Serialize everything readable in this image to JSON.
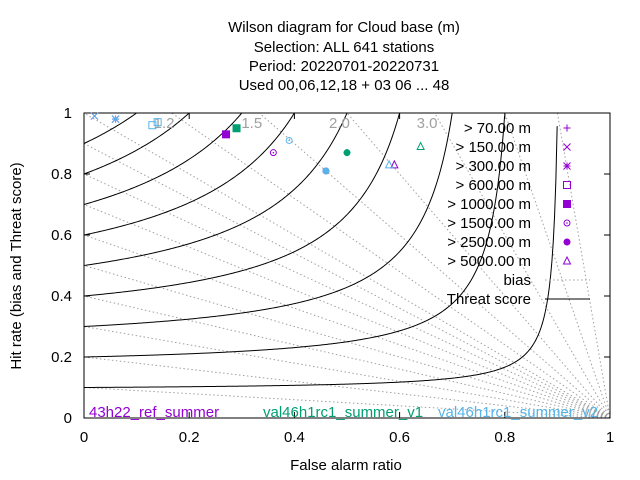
{
  "chart_data": {
    "type": "scatter",
    "title": [
      "Wilson diagram  for Cloud base (m)",
      "Selection: ALL    641 stations",
      "Period: 20220701-20220731",
      "Used  00,06,12,18  + 03 06 ... 48"
    ],
    "xlabel": "False alarm ratio",
    "ylabel": "Hit rate (bias and Threat score)",
    "xlim": [
      0,
      1
    ],
    "ylim": [
      0,
      1
    ],
    "xticks": [
      "0",
      "0.2",
      "0.4",
      "0.6",
      "0.8",
      "1"
    ],
    "yticks": [
      "0",
      "0.2",
      "0.4",
      "0.6",
      "0.8",
      "1"
    ],
    "bias_lines": {
      "values": [
        0.1,
        0.2,
        0.3,
        0.4,
        0.5,
        0.6,
        0.7,
        0.8,
        0.9,
        1.0,
        1.2,
        1.5,
        2.0,
        3.0,
        5.0,
        10.0
      ],
      "labels": [
        {
          "text": "1.2",
          "value": 1.2
        },
        {
          "text": "1.5",
          "value": 1.5
        },
        {
          "text": "2.0",
          "value": 2.0
        },
        {
          "text": "3.0",
          "value": 3.0
        }
      ],
      "color": "#a0a0a0"
    },
    "threat_score_lines": {
      "values": [
        0.1,
        0.2,
        0.3,
        0.4,
        0.5,
        0.6,
        0.7,
        0.8,
        0.9
      ],
      "color": "#000000"
    },
    "legend": {
      "position": "top-right",
      "entries": [
        {
          "label": "> 70.00 m",
          "symbol": "plus",
          "color": "#9400d3"
        },
        {
          "label": "> 150.00 m",
          "symbol": "cross",
          "color": "#9400d3"
        },
        {
          "label": "> 300.00 m",
          "symbol": "star",
          "color": "#9400d3"
        },
        {
          "label": "> 600.00 m",
          "symbol": "box",
          "color": "#9400d3"
        },
        {
          "label": "> 1000.00 m",
          "symbol": "filled-box",
          "color": "#9400d3"
        },
        {
          "label": "> 1500.00 m",
          "symbol": "circle",
          "color": "#9400d3"
        },
        {
          "label": "> 2500.00 m",
          "symbol": "filled-circle",
          "color": "#9400d3"
        },
        {
          "label": "> 5000.00 m",
          "symbol": "triangle",
          "color": "#9400d3"
        },
        {
          "label": "bias",
          "symbol": "dotted-line",
          "color": "#a0a0a0"
        },
        {
          "label": "Threat score",
          "symbol": "solid-line",
          "color": "#000000"
        }
      ]
    },
    "series": [
      {
        "name": "43h22_ref_summer",
        "color": "#9400d3",
        "points": [
          {
            "x": 0.02,
            "y": 0.99,
            "symbol": "cross"
          },
          {
            "x": 0.06,
            "y": 0.98,
            "symbol": "star"
          },
          {
            "x": 0.27,
            "y": 0.93,
            "symbol": "filled-box"
          },
          {
            "x": 0.36,
            "y": 0.87,
            "symbol": "circle"
          },
          {
            "x": 0.46,
            "y": 0.81,
            "symbol": "filled-circle"
          },
          {
            "x": 0.59,
            "y": 0.83,
            "symbol": "triangle"
          }
        ]
      },
      {
        "name": "val46h1rc1_summer_v1",
        "color": "#009e73",
        "points": [
          {
            "x": 0.29,
            "y": 0.95,
            "symbol": "filled-box"
          },
          {
            "x": 0.5,
            "y": 0.87,
            "symbol": "filled-circle"
          },
          {
            "x": 0.64,
            "y": 0.89,
            "symbol": "triangle"
          }
        ]
      },
      {
        "name": "val46h1rc1_summer_v2",
        "color": "#56b4e9",
        "points": [
          {
            "x": 0.02,
            "y": 0.99,
            "symbol": "cross"
          },
          {
            "x": 0.06,
            "y": 0.98,
            "symbol": "star"
          },
          {
            "x": 0.13,
            "y": 0.96,
            "symbol": "box"
          },
          {
            "x": 0.14,
            "y": 0.97,
            "symbol": "box"
          },
          {
            "x": 0.39,
            "y": 0.91,
            "symbol": "circle"
          },
          {
            "x": 0.46,
            "y": 0.81,
            "symbol": "filled-circle"
          },
          {
            "x": 0.58,
            "y": 0.83,
            "symbol": "triangle"
          }
        ]
      }
    ],
    "experiment_labels": [
      {
        "text": "43h22_ref_summer",
        "color": "#9400d3"
      },
      {
        "text": "val46h1rc1_summer_v1",
        "color": "#009e73"
      },
      {
        "text": "val46h1rc1_summer_v2",
        "color": "#56b4e9"
      }
    ]
  }
}
